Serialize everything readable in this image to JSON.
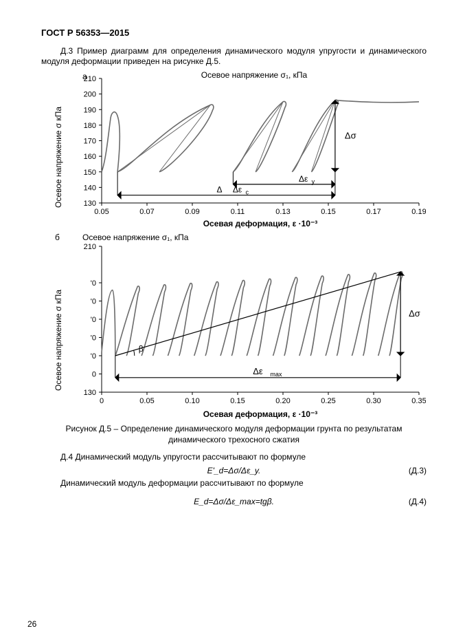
{
  "header": "ГОСТ Р 56353—2015",
  "intro": "Д.3 Пример диаграмм для определения динамического модуля упругости и динамического модуля деформации приведен на рисунке Д.5.",
  "panelA": {
    "letter": "а",
    "topTitle": "Осевое напряжение σ₁, кПа",
    "xTitle": "Осевая деформация, ε   ·10⁻³",
    "yTitleTruncated": "Осевое напряжение σ   кПа",
    "xlim": [
      0.05,
      0.19
    ],
    "ylim": [
      130,
      210
    ],
    "xticks": [
      0.05,
      0.07,
      0.09,
      0.11,
      0.13,
      0.15,
      0.17,
      0.19
    ],
    "yticks": [
      130,
      140,
      150,
      160,
      170,
      180,
      190,
      200,
      210
    ],
    "annot_dsigma": "Δσ",
    "annot_dey": "Δε_y",
    "annot_dec": "Δε_c",
    "loops": [
      {
        "start_x": 0.057,
        "peak_x": 0.098,
        "peak_y": 193,
        "base_y": 150
      },
      {
        "start_x": 0.108,
        "peak_x": 0.13,
        "peak_y": 195,
        "base_y": 150
      },
      {
        "start_x": 0.134,
        "peak_x": 0.153,
        "peak_y": 196,
        "base_y": 150
      }
    ],
    "line_color": "#6b6b6b",
    "annot_color": "#000000",
    "line_width": 1.6,
    "annot_width": 1.2,
    "grid_color": "#c8c8c8"
  },
  "panelB": {
    "letter": "б",
    "topTitle": "Осевое напряжение σ₁, кПа",
    "xTitle": "Осевая деформация, ε    ·10⁻³",
    "yTitleTruncated": "Осевое напряжение σ   кПа",
    "xlim": [
      0,
      0.35
    ],
    "ylim": [
      130,
      210
    ],
    "xticks": [
      0,
      0.05,
      0.1,
      0.15,
      0.2,
      0.25,
      0.3,
      0.35
    ],
    "yticks_labels": [
      "130",
      "0",
      "'0",
      "'0",
      "'0",
      "'0",
      "'0",
      "210"
    ],
    "yticks_vals": [
      130,
      140,
      150,
      160,
      170,
      180,
      190,
      210
    ],
    "annot_dsigma": "Δσ",
    "annot_demax": "Δε_max",
    "annot_beta": "β",
    "n_loops": 11,
    "loop_start_x": 0.015,
    "loop_spacing": 0.029,
    "loop_base_y": 150,
    "loop_peak_y_start": 188,
    "loop_peak_y_end": 196,
    "line_color": "#6b6b6b",
    "annot_color": "#000000",
    "line_width": 1.6,
    "annot_width": 1.2
  },
  "caption1": "Рисунок Д.5 – Определение динамического модуля деформации грунта по результатам",
  "caption2": "динамического трехосного сжатия",
  "textD4": "Д.4 Динамический модуль упругости рассчитывают по формуле",
  "formulaD3": "E'_d=Δσ/Δε_y.",
  "formulaD3_num": "(Д.3)",
  "textD4b": "Динамический модуль деформации рассчитывают по формуле",
  "formulaD4": "E_d=Δσ/Δε_max=tgβ.",
  "formulaD4_num": "(Д.4)",
  "pageNum": "26",
  "colors": {
    "text": "#000000",
    "bg": "#ffffff"
  }
}
